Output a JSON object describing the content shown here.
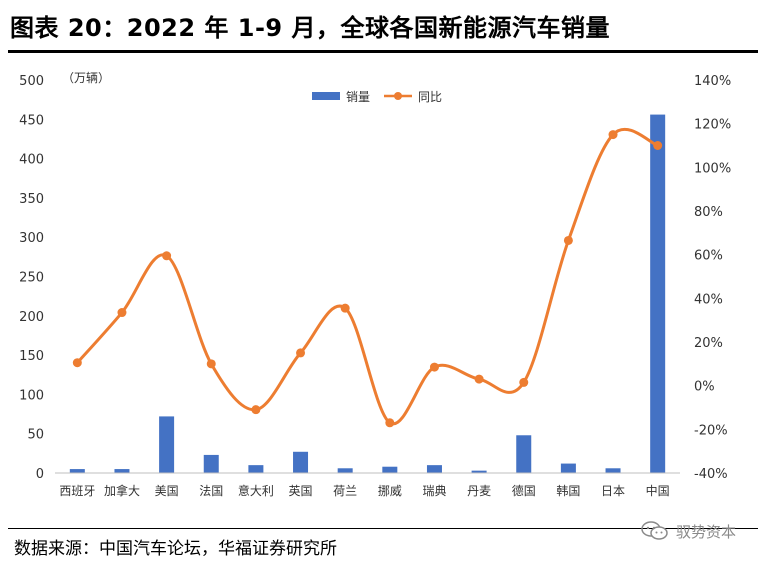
{
  "title": "图表 20：2022 年 1-9 月，全球各国新能源汽车销量",
  "source": "数据来源：中国汽车论坛，华福证券研究所",
  "watermark": "驭势资本",
  "chart_data": {
    "type": "bar+line",
    "unit_label": "（万辆）",
    "categories": [
      "西班牙",
      "加拿大",
      "美国",
      "法国",
      "意大利",
      "英国",
      "荷兰",
      "挪威",
      "瑞典",
      "丹麦",
      "德国",
      "韩国",
      "日本",
      "中国"
    ],
    "series": [
      {
        "name": "销量",
        "type": "bar",
        "axis": "left",
        "color": "#4472C4",
        "values": [
          5,
          5,
          72,
          23,
          10,
          27,
          6,
          8,
          10,
          3,
          48,
          12,
          6,
          456
        ]
      },
      {
        "name": "同比",
        "type": "line",
        "axis": "right",
        "color": "#ED7D31",
        "values": [
          10.5,
          33.5,
          59.5,
          10,
          -11,
          15,
          35.5,
          -17,
          8.5,
          3,
          1.5,
          66.5,
          115,
          110
        ]
      }
    ],
    "left_axis": {
      "ylim": [
        0,
        500
      ],
      "ticks": [
        0,
        50,
        100,
        150,
        200,
        250,
        300,
        350,
        400,
        450,
        500
      ]
    },
    "right_axis": {
      "ylim": [
        -40,
        140
      ],
      "ticks": [
        "-40%",
        "-20%",
        "0%",
        "20%",
        "40%",
        "60%",
        "80%",
        "100%",
        "120%",
        "140%"
      ]
    },
    "legend_position": "top-center",
    "grid": false
  }
}
